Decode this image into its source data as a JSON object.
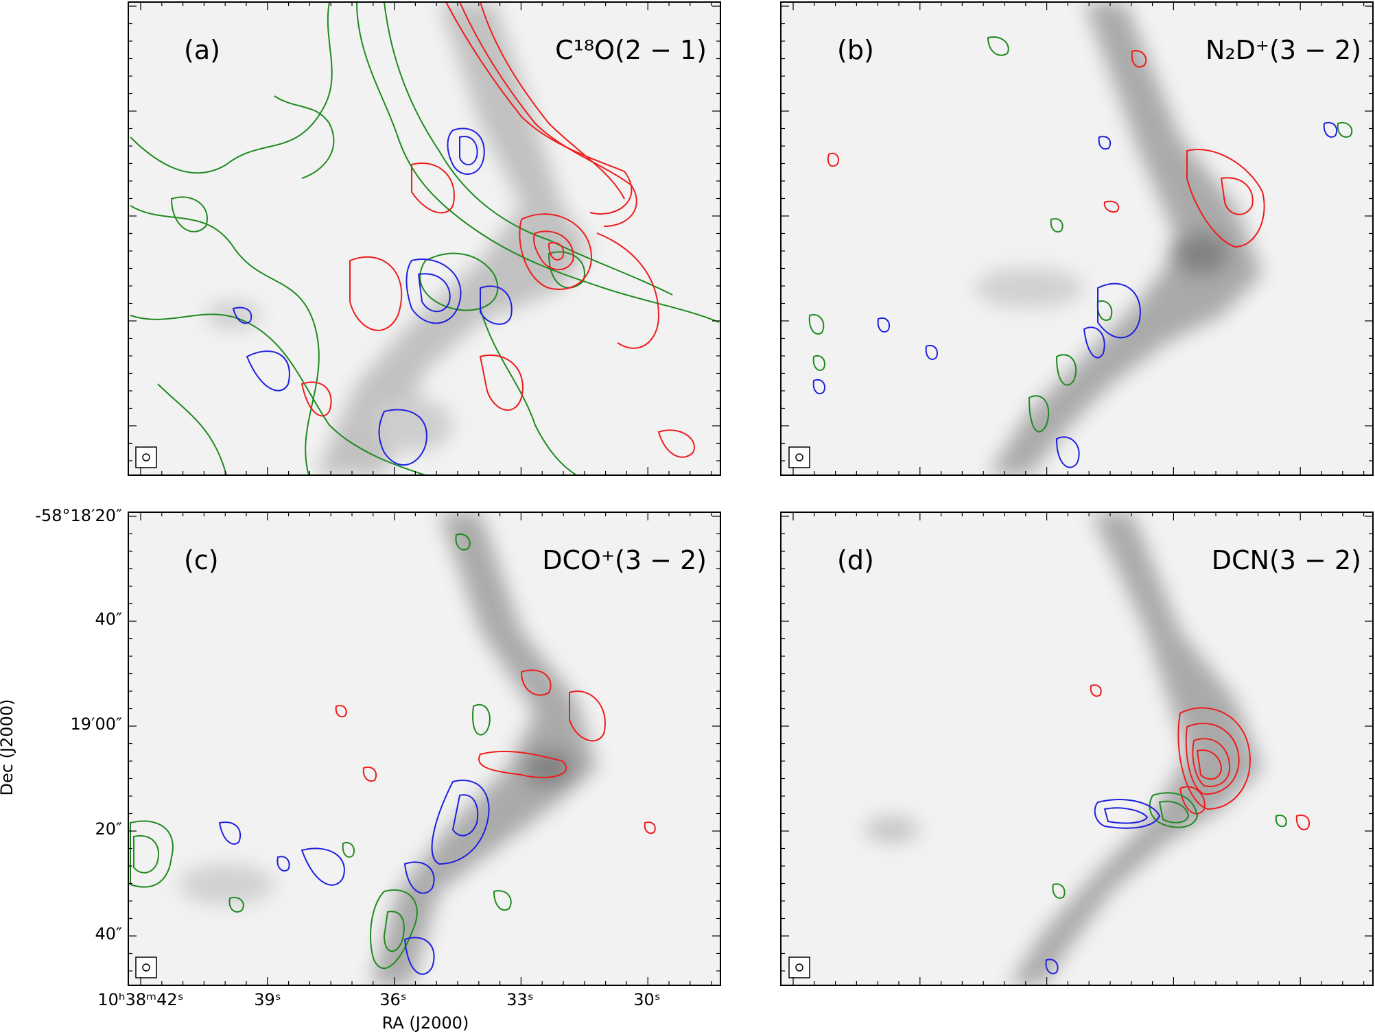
{
  "figure": {
    "panels": [
      {
        "id": "a",
        "label": "(a)",
        "molecule": "C¹⁸O(2 − 1)"
      },
      {
        "id": "b",
        "label": "(b)",
        "molecule": "N₂D⁺(3 − 2)"
      },
      {
        "id": "c",
        "label": "(c)",
        "molecule": "DCO⁺(3 − 2)"
      },
      {
        "id": "d",
        "label": "(d)",
        "molecule": "DCN(3 − 2)"
      }
    ],
    "x_axis": {
      "label": "RA (J2000)",
      "ticks": [
        "10ʰ38ᵐ42ˢ",
        "39ˢ",
        "36ˢ",
        "33ˢ",
        "30ˢ"
      ]
    },
    "y_axis": {
      "label": "Dec (J2000)",
      "ticks": [
        "-58°18′20″",
        "40″",
        "19′00″",
        "20″",
        "40″"
      ]
    },
    "contour_colors": {
      "blueshifted": "#1f1fe0",
      "systemic": "#1e8a1e",
      "redshifted": "#ee1c1c"
    },
    "background_colormap": "gray"
  }
}
